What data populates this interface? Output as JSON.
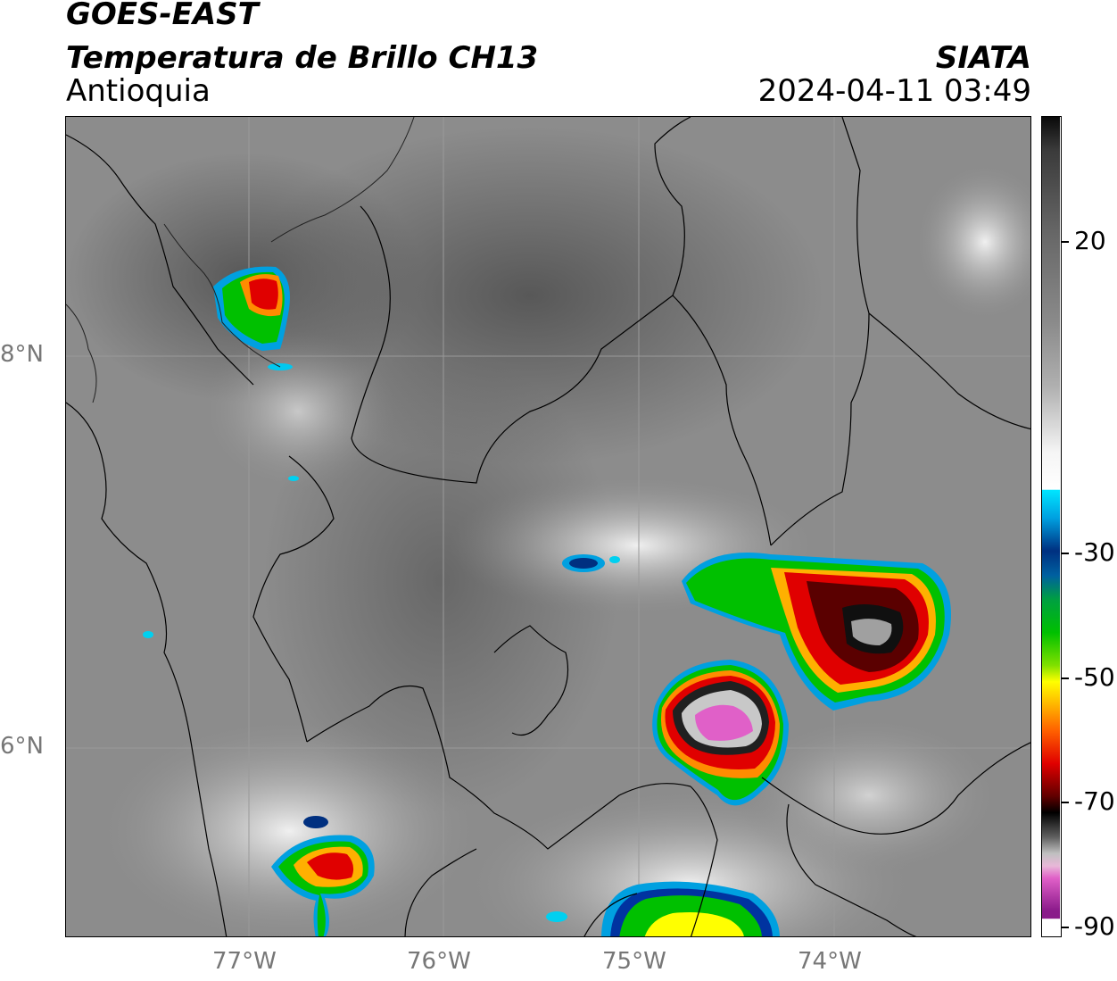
{
  "header": {
    "satellite": "GOES-EAST",
    "product": "Temperatura de Brillo CH13",
    "region": "Antioquia",
    "organization": "SIATA",
    "datetime": "2024-04-11 03:49"
  },
  "map": {
    "lat_labels": [
      "8°N",
      "6°N"
    ],
    "lon_labels": [
      "77°W",
      "76°W",
      "75°W",
      "74°W"
    ],
    "background_color": "#8a8a8a",
    "border_color": "#000000"
  },
  "colorbar": {
    "labels": [
      "20",
      "-30",
      "-50",
      "-70",
      "-90"
    ],
    "colors": {
      "warm": "#6e6e6e",
      "white": "#f2f2f2",
      "cyan": "#00e5ff",
      "blue": "#0033a0",
      "green": "#00c000",
      "yellow": "#ffff00",
      "orange": "#ff8c00",
      "red": "#e00000",
      "darkred": "#5a0000",
      "black": "#000000",
      "pink": "#e060c8",
      "purple": "#8a1a8a"
    }
  }
}
